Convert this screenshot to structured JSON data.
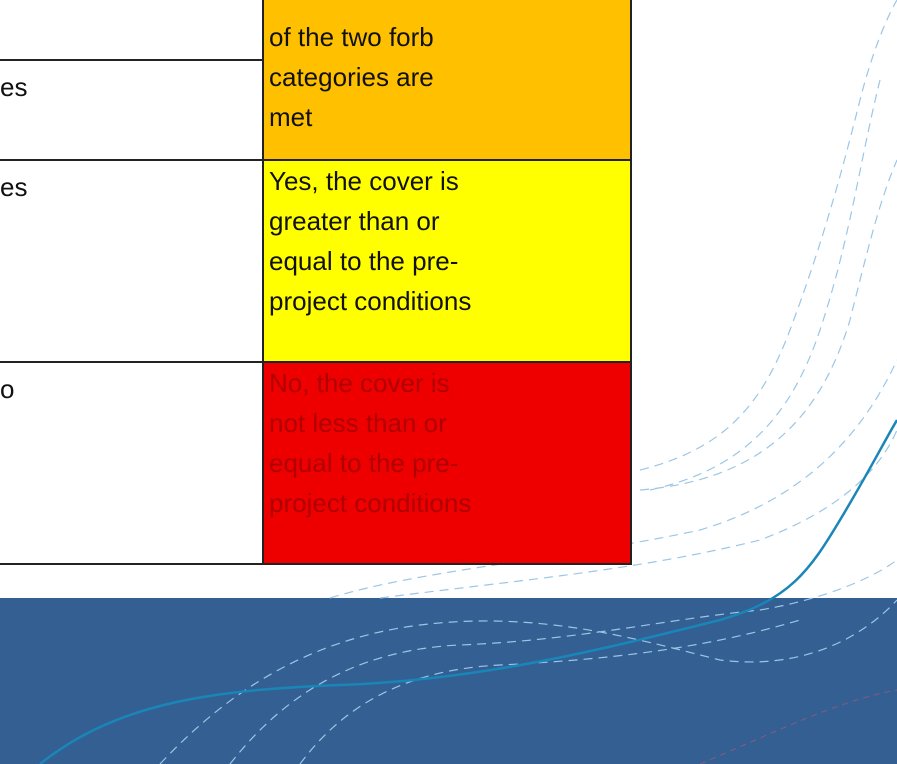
{
  "table": {
    "left_column": [
      "es",
      "es",
      "o"
    ],
    "right_column": [
      [
        "of the two forb",
        "categories are",
        "met"
      ],
      [
        "Yes, the cover is",
        "greater than or",
        "equal to the pre-",
        "project conditions"
      ],
      [
        "No, the cover is",
        "not less than or",
        "equal to the pre-",
        "project conditions"
      ]
    ]
  }
}
